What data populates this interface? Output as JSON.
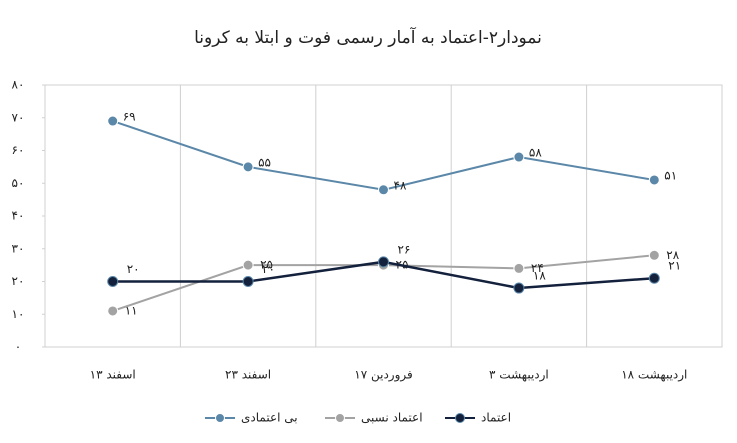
{
  "chart_data": {
    "type": "line",
    "title": "نمودار۲-اعتماد به آمار رسمی فوت و ابتلا به کرونا",
    "categories": [
      "۱۳ اسفند",
      "۲۳ اسفند",
      "۱۷ فروردین",
      "۳ اردیبهشت",
      "۱۸ اردیبهشت"
    ],
    "series": [
      {
        "name": "بی اعتمادی",
        "color": "#5b87a8",
        "values": [
          69,
          55,
          48,
          58,
          51
        ],
        "value_labels": [
          "۶۹",
          "۵۵",
          "۴۸",
          "۵۸",
          "۵۱"
        ]
      },
      {
        "name": "اعتماد نسبی",
        "color": "#a3a3a3",
        "values": [
          11,
          25,
          25,
          24,
          28
        ],
        "value_labels": [
          "۱۱",
          "۲۵",
          "۲۵",
          "۲۴",
          "۲۸"
        ]
      },
      {
        "name": "اعتماد",
        "color": "#14213d",
        "values": [
          20,
          20,
          26,
          18,
          21
        ],
        "value_labels": [
          "۲۰",
          "۲۰",
          "۲۶",
          "۱۸",
          "۲۱"
        ]
      }
    ],
    "ylim": [
      0,
      80
    ],
    "yticks": [
      {
        "value": 0,
        "label": "۰"
      },
      {
        "value": 10,
        "label": "۱۰"
      },
      {
        "value": 20,
        "label": "۲۰"
      },
      {
        "value": 30,
        "label": "۳۰"
      },
      {
        "value": 40,
        "label": "۴۰"
      },
      {
        "value": 50,
        "label": "۵۰"
      },
      {
        "value": 60,
        "label": "۶۰"
      },
      {
        "value": 70,
        "label": "۷۰"
      },
      {
        "value": 80,
        "label": "۸۰"
      }
    ],
    "legend": "bottom"
  }
}
